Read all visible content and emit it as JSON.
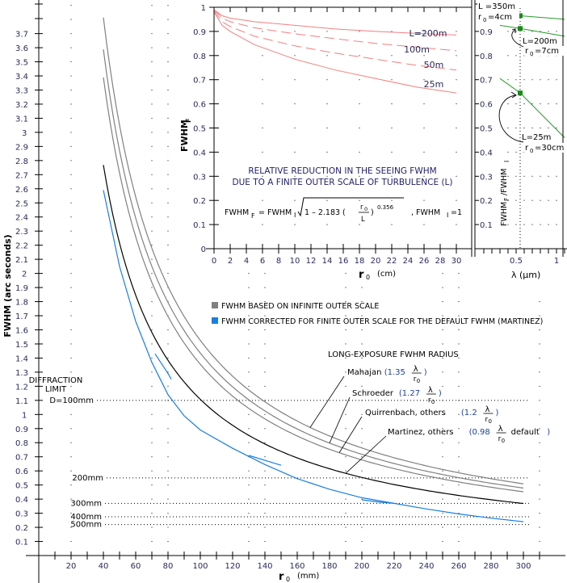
{
  "chart_data": [
    {
      "name": "main",
      "type": "line",
      "xlabel": "r",
      "xlabel_sub": "0",
      "xlabel_unit": "(mm)",
      "ylabel": "FWHM (arc seconds)",
      "xlim": [
        0,
        315
      ],
      "ylim": [
        0,
        3.9
      ],
      "x_ticks": [
        20,
        40,
        60,
        80,
        100,
        120,
        140,
        160,
        180,
        200,
        220,
        240,
        260,
        280,
        300
      ],
      "y_ticks": [
        "0.1",
        "0.2",
        "0.3",
        "0.4",
        "0.5",
        "0.6",
        "0.7",
        "0.8",
        "0.9",
        "1",
        "1.1",
        "1.2",
        "1.3",
        "1.4",
        "1.5",
        "1.6",
        "1.7",
        "1.8",
        "1.9",
        "2",
        "2.1",
        "2.2",
        "2.3",
        "2.4",
        "2.5",
        "2.6",
        "2.7",
        "2.8",
        "2.9",
        "3",
        "3.1",
        "3.2",
        "3.3",
        "3.4",
        "3.5",
        "3.6",
        "3.7"
      ],
      "grid": "dotted",
      "model": {
        "formula": "k * C / r0",
        "C_arcsec_mm": 113,
        "r0_range_mm": [
          40,
          300
        ]
      },
      "series": [
        {
          "name": "Mahajan",
          "k": 1.35,
          "color": "#808080",
          "group": "infinite"
        },
        {
          "name": "Schroeder",
          "k": 1.27,
          "color": "#808080",
          "group": "infinite"
        },
        {
          "name": "Quirrenbach, others",
          "k": 1.2,
          "color": "#808080",
          "group": "infinite"
        },
        {
          "name": "Martinez, others",
          "k": 0.98,
          "color": "#000000",
          "group": "default"
        },
        {
          "name": "Martinez corrected (finite outer scale)",
          "color": "#1a7ee0",
          "group": "corrected",
          "x": [
            40,
            50,
            60,
            70,
            80,
            90,
            100,
            120,
            140,
            160,
            180,
            200,
            220,
            240,
            260,
            280,
            300
          ],
          "y": [
            2.59,
            2.05,
            1.66,
            1.37,
            1.14,
            0.99,
            0.89,
            0.76,
            0.645,
            0.545,
            0.47,
            0.41,
            0.37,
            0.33,
            0.295,
            0.265,
            0.24
          ]
        },
        {
          "name": "corrected segment 1",
          "color": "#1a7ee0",
          "group": "corrected",
          "x": [
            72,
            76,
            80,
            82
          ],
          "y": [
            1.43,
            1.36,
            1.29,
            1.25
          ]
        },
        {
          "name": "corrected segment 2",
          "color": "#1a7ee0",
          "group": "corrected",
          "x": [
            130,
            140,
            150
          ],
          "y": [
            0.71,
            0.675,
            0.64
          ]
        },
        {
          "name": "corrected segment 3",
          "color": "#1a7ee0",
          "group": "corrected",
          "x": [
            200,
            210,
            220
          ],
          "y": [
            0.395,
            0.38,
            0.37
          ]
        }
      ],
      "diffraction_limits": [
        {
          "label": "D=100mm",
          "value": 1.1
        },
        {
          "label": "200mm",
          "value": 0.55
        },
        {
          "label": "300mm",
          "value": 0.37
        },
        {
          "label": "400mm",
          "value": 0.275
        },
        {
          "label": "500mm",
          "value": 0.22
        }
      ],
      "diffraction_title": [
        "DIFFRACTION",
        "LIMIT"
      ],
      "legend": [
        {
          "label": "FWHM  BASED ON INFINITE OUTER SCALE",
          "color": "#808080"
        },
        {
          "label": "FWHM CORRECTED FOR FINITE OUTER SCALE FOR THE DEFAULT FWHM (MARTINEZ)",
          "color": "#1a7ee0"
        }
      ],
      "annotation_title": "LONG-EXPOSURE FWHM RADIUS",
      "annotations": [
        {
          "name": "Mahajan",
          "coef": "1.35",
          "suffix": ""
        },
        {
          "name": "Schroeder",
          "coef": "1.27",
          "suffix": ""
        },
        {
          "name": "Quirrenbach, others",
          "coef": "1.2",
          "suffix": ""
        },
        {
          "name": "Martinez, others",
          "coef": "0.98",
          "suffix": "default"
        }
      ]
    },
    {
      "name": "inset_outer_scale",
      "type": "line",
      "xlabel": "r",
      "xlabel_sub": "0",
      "xlabel_unit": "(cm)",
      "ylabel": "FWHM",
      "ylabel_sub": "F",
      "xlim": [
        0,
        32
      ],
      "ylim": [
        0,
        1
      ],
      "x_ticks": [
        0,
        2,
        4,
        6,
        8,
        10,
        12,
        14,
        16,
        18,
        20,
        22,
        24,
        26,
        28,
        30
      ],
      "y_ticks": [
        "0",
        "0.1",
        "0.2",
        "0.3",
        "0.4",
        "0.5",
        "0.6",
        "0.7",
        "0.8",
        "0.9",
        "1"
      ],
      "title": [
        "RELATIVE REDUCTION IN THE SEEING FWHM",
        "DUE TO A FINITE OUTER SCALE OF TURBULENCE (L)"
      ],
      "formula": {
        "lhs": "FWHM",
        "lhs_sub": "F",
        "eq": "= FWHM",
        "eq_sub": "I",
        "inner": "1 –  2.183 (",
        "frac_num": "r",
        "frac_num_sub": "0",
        "frac_den": "L",
        "close": ")",
        "exp": "0.356",
        "tail": ", FWHM",
        "tail_sub": "I",
        "tail_val": "=1"
      },
      "series": [
        {
          "name": "L=200m",
          "label": "L=200m",
          "color": "#f08080",
          "x": [
            0,
            1,
            2,
            5,
            10,
            15,
            20,
            25,
            30
          ],
          "y": [
            0.99,
            0.965,
            0.955,
            0.94,
            0.925,
            0.91,
            0.9,
            0.892,
            0.885
          ]
        },
        {
          "name": "L=100m",
          "label": "100m",
          "color": "#f08080",
          "x": [
            0,
            1,
            2,
            5,
            10,
            15,
            20,
            25,
            30
          ],
          "y": [
            0.99,
            0.955,
            0.94,
            0.915,
            0.89,
            0.87,
            0.85,
            0.835,
            0.82
          ]
        },
        {
          "name": "L=50m",
          "label": "50m",
          "color": "#f08080",
          "x": [
            0,
            1,
            2,
            5,
            10,
            15,
            20,
            25,
            30
          ],
          "y": [
            0.985,
            0.94,
            0.92,
            0.88,
            0.84,
            0.81,
            0.785,
            0.76,
            0.74
          ]
        },
        {
          "name": "L=25m",
          "label": "25m",
          "color": "#f08080",
          "x": [
            0,
            1,
            2,
            5,
            10,
            15,
            20,
            25,
            30
          ],
          "y": [
            0.98,
            0.925,
            0.9,
            0.845,
            0.785,
            0.74,
            0.705,
            0.67,
            0.645
          ]
        }
      ]
    },
    {
      "name": "inset_wavelength",
      "type": "line",
      "xlabel": "λ (μm)",
      "ylabel": "FWHM",
      "ylabel_sub1": "F",
      "ylabel_mid": "/FWHM",
      "ylabel_sub2": "I",
      "xlim": [
        0,
        1.1
      ],
      "ylim": [
        0,
        1
      ],
      "x_ticks": [
        "0.5",
        "1"
      ],
      "y_ticks": [
        "0.1",
        "0.2",
        "0.3",
        "0.4",
        "0.5",
        "0.6",
        "0.7",
        "0.8",
        "0.9"
      ],
      "series": [
        {
          "name": "L=350m r0=4cm",
          "color": "#2a9a2a",
          "x": [
            0.3,
            0.55,
            1.1
          ],
          "y": [
            0.965,
            0.965,
            0.95
          ],
          "marker_x": 0.55,
          "marker_y": 0.965
        },
        {
          "name": "L=200m r0=7cm",
          "color": "#2a9a2a",
          "x": [
            0.3,
            0.55,
            1.1
          ],
          "y": [
            0.925,
            0.912,
            0.88
          ],
          "marker_x": 0.55,
          "marker_y": 0.912
        },
        {
          "name": "L=25m r0=30cm",
          "color": "#2a9a2a",
          "x": [
            0.3,
            0.55,
            1.1
          ],
          "y": [
            0.705,
            0.645,
            0.46
          ],
          "marker_x": 0.55,
          "marker_y": 0.645
        }
      ],
      "annotations": [
        {
          "l": "L =350m",
          "r": "r",
          "r_sub": "0",
          "rv": "=4cm"
        },
        {
          "l": "L=200m",
          "r": "r",
          "r_sub": "0",
          "rv": "=7cm"
        },
        {
          "l": "L=25m",
          "r": "r",
          "r_sub": "0",
          "rv": "=30cm"
        }
      ]
    }
  ]
}
